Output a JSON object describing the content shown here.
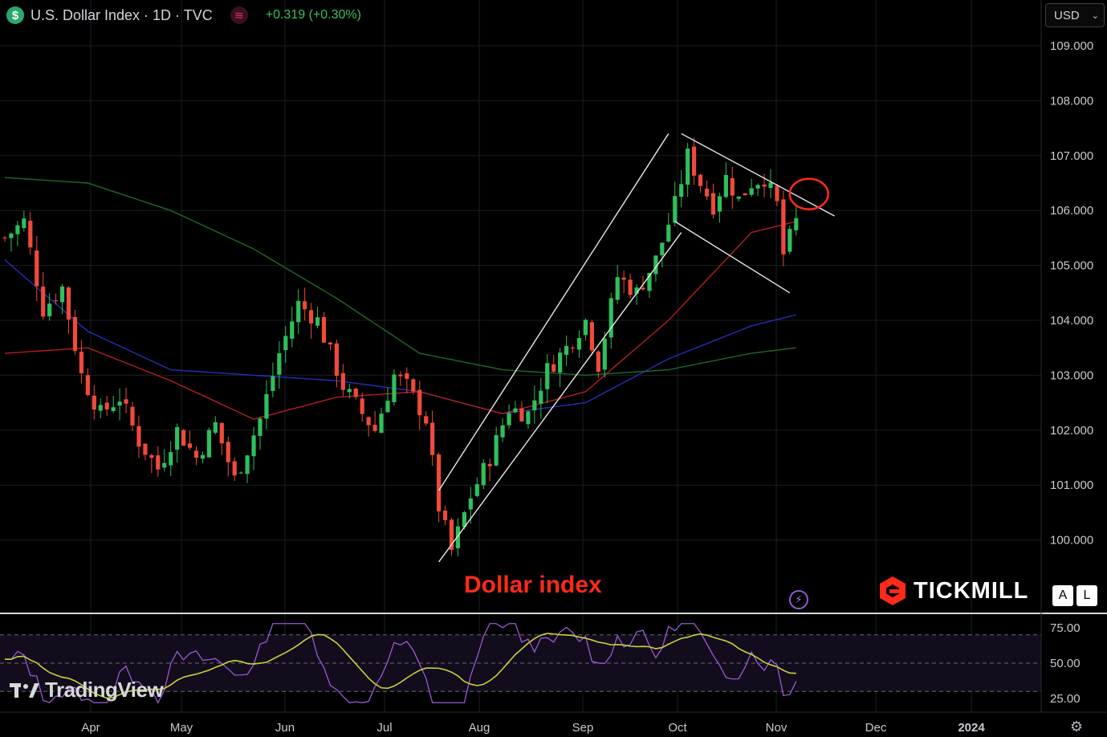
{
  "header": {
    "symbol_icon": "$",
    "title": "U.S. Dollar Index · 1D · TVC",
    "indicator_icon": "wave-icon",
    "change": "+0.319 (+0.30%)"
  },
  "currency_select": {
    "value": "USD"
  },
  "buttons": {
    "auto": "A",
    "log": "L"
  },
  "branding": {
    "tickmill": "TICKMILL",
    "tradingview": "TradingView"
  },
  "annotation": {
    "label": "Dollar index",
    "color": "#ff2a1a"
  },
  "colors": {
    "up": "#2fbf5c",
    "down": "#f04a3c",
    "ma_blue": "#2230b8",
    "ma_red": "#b41e22",
    "ma_green": "#1d6a26",
    "rsi": "#9b59d8",
    "rsi_ma": "#c8d23a"
  },
  "chart_data": {
    "type": "candlestick",
    "title": "U.S. Dollar Index · 1D · TVC",
    "y_axis": {
      "ticks": [
        "109.000",
        "108.000",
        "107.000",
        "106.000",
        "105.000",
        "104.000",
        "103.000",
        "102.000",
        "101.000",
        "100.000"
      ],
      "range": [
        99.2,
        109.8
      ]
    },
    "x_axis": {
      "labels": [
        "Apr",
        "May",
        "Jun",
        "Jul",
        "Aug",
        "Sep",
        "Oct",
        "Nov",
        "Dec",
        "2024"
      ]
    },
    "rsi": {
      "ticks": [
        "75.00",
        "50.00",
        "25.00"
      ],
      "bands": [
        70,
        30
      ],
      "range": [
        12,
        80
      ]
    },
    "price_path": [
      [
        0,
        105.5
      ],
      [
        3,
        105.8
      ],
      [
        6,
        104.2
      ],
      [
        9,
        104.6
      ],
      [
        12,
        103.0
      ],
      [
        15,
        102.3
      ],
      [
        18,
        102.6
      ],
      [
        21,
        101.8
      ],
      [
        24,
        101.3
      ],
      [
        27,
        102.0
      ],
      [
        30,
        101.5
      ],
      [
        33,
        102.1
      ],
      [
        36,
        101.1
      ],
      [
        40,
        102.2
      ],
      [
        43,
        103.4
      ],
      [
        46,
        104.3
      ],
      [
        49,
        104.0
      ],
      [
        53,
        102.8
      ],
      [
        56,
        102.3
      ],
      [
        58,
        102.0
      ],
      [
        61,
        103.0
      ],
      [
        63,
        102.8
      ],
      [
        66,
        102.2
      ],
      [
        68,
        100.6
      ],
      [
        70,
        99.8
      ],
      [
        73,
        100.8
      ],
      [
        76,
        101.5
      ],
      [
        79,
        102.4
      ],
      [
        82,
        102.3
      ],
      [
        85,
        103.1
      ],
      [
        88,
        103.5
      ],
      [
        91,
        104.0
      ],
      [
        93,
        103.2
      ],
      [
        96,
        104.8
      ],
      [
        99,
        104.5
      ],
      [
        102,
        105.1
      ],
      [
        105,
        106.1
      ],
      [
        107,
        107.0
      ],
      [
        109,
        106.5
      ],
      [
        111,
        106.1
      ],
      [
        113,
        106.6
      ],
      [
        115,
        106.2
      ],
      [
        117,
        106.5
      ],
      [
        119,
        106.6
      ],
      [
        121,
        106.1
      ],
      [
        122,
        105.2
      ],
      [
        124,
        105.8
      ]
    ],
    "moving_averages": [
      {
        "name": "MA50",
        "color": "blue",
        "points": [
          [
            0,
            105.1
          ],
          [
            13,
            103.8
          ],
          [
            26,
            103.1
          ],
          [
            39,
            103.0
          ],
          [
            52,
            102.9
          ],
          [
            65,
            102.7
          ],
          [
            78,
            102.3
          ],
          [
            91,
            102.5
          ],
          [
            104,
            103.3
          ],
          [
            117,
            103.9
          ],
          [
            124,
            104.1
          ]
        ]
      },
      {
        "name": "MA100",
        "color": "red",
        "points": [
          [
            0,
            103.4
          ],
          [
            13,
            103.5
          ],
          [
            26,
            102.9
          ],
          [
            39,
            102.2
          ],
          [
            52,
            102.6
          ],
          [
            65,
            102.7
          ],
          [
            78,
            102.3
          ],
          [
            91,
            102.7
          ],
          [
            104,
            104.0
          ],
          [
            117,
            105.6
          ],
          [
            124,
            105.8
          ]
        ]
      },
      {
        "name": "MA200",
        "color": "green",
        "points": [
          [
            0,
            106.6
          ],
          [
            13,
            106.5
          ],
          [
            26,
            106.0
          ],
          [
            39,
            105.3
          ],
          [
            52,
            104.4
          ],
          [
            65,
            103.4
          ],
          [
            78,
            103.1
          ],
          [
            91,
            103.0
          ],
          [
            104,
            103.1
          ],
          [
            117,
            103.4
          ],
          [
            124,
            103.5
          ]
        ]
      }
    ],
    "trend_lines": [
      {
        "name": "rising-channel-upper",
        "points": [
          [
            68,
            100.9
          ],
          [
            104,
            107.4
          ]
        ]
      },
      {
        "name": "rising-channel-lower",
        "points": [
          [
            68,
            99.6
          ],
          [
            106,
            105.6
          ]
        ]
      },
      {
        "name": "falling-channel-upper",
        "points": [
          [
            106,
            107.4
          ],
          [
            130,
            105.9
          ]
        ]
      },
      {
        "name": "falling-channel-lower",
        "points": [
          [
            105,
            105.8
          ],
          [
            123,
            104.5
          ]
        ]
      }
    ],
    "highlight": {
      "name": "breakout-circle",
      "x": 126,
      "y": 106.3
    }
  }
}
